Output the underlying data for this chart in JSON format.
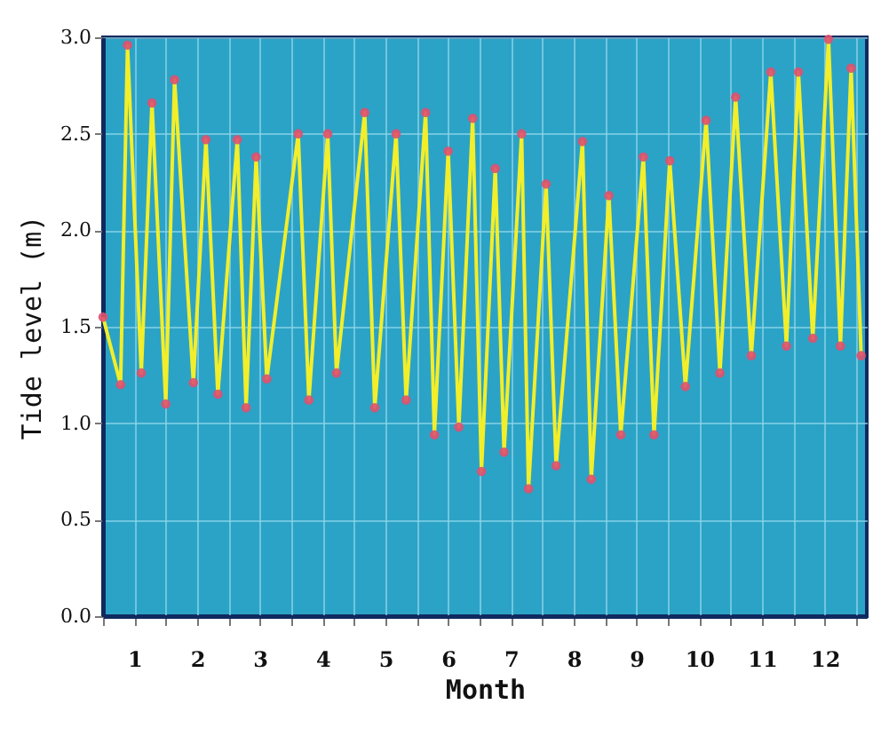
{
  "chart_data": {
    "type": "line",
    "xlabel": "Month",
    "ylabel": "Tide level (m)",
    "x": [
      0,
      0.28,
      0.39,
      0.61,
      0.78,
      1.0,
      1.14,
      1.44,
      1.64,
      1.83,
      2.14,
      2.28,
      2.44,
      2.61,
      3.11,
      3.28,
      3.58,
      3.72,
      4.17,
      4.33,
      4.67,
      4.83,
      5.14,
      5.28,
      5.5,
      5.67,
      5.89,
      6.03,
      6.25,
      6.39,
      6.67,
      6.78,
      7.06,
      7.22,
      7.64,
      7.78,
      8.06,
      8.25,
      8.61,
      8.78,
      9.03,
      9.28,
      9.61,
      9.83,
      10.08,
      10.33,
      10.64,
      10.89,
      11.08,
      11.31,
      11.56,
      11.75,
      11.92,
      12.08
    ],
    "series": [
      {
        "type": "line",
        "color": "#f2ee2a",
        "values": [
          1.55,
          1.2,
          2.96,
          1.26,
          2.66,
          1.1,
          2.78,
          1.21,
          2.47,
          1.15,
          2.47,
          1.08,
          2.38,
          1.23,
          2.5,
          1.12,
          2.5,
          1.26,
          2.61,
          1.08,
          2.5,
          1.12,
          2.61,
          0.94,
          2.41,
          0.98,
          2.58,
          0.75,
          2.32,
          0.85,
          2.5,
          0.66,
          2.24,
          0.78,
          2.46,
          0.71,
          2.18,
          0.94,
          2.38,
          0.94,
          2.36,
          1.19,
          2.57,
          1.26,
          2.69,
          1.35,
          2.82,
          1.4,
          2.82,
          1.44,
          2.99,
          1.4,
          2.84,
          1.35
        ]
      },
      {
        "type": "scatter",
        "color": "#e0506e",
        "values": [
          1.55,
          1.2,
          2.96,
          1.26,
          2.66,
          1.1,
          2.78,
          1.21,
          2.47,
          1.15,
          2.47,
          1.08,
          2.38,
          1.23,
          2.5,
          1.12,
          2.5,
          1.26,
          2.61,
          1.08,
          2.5,
          1.12,
          2.61,
          0.94,
          2.41,
          0.98,
          2.58,
          0.75,
          2.32,
          0.85,
          2.5,
          0.66,
          2.24,
          0.78,
          2.46,
          0.71,
          2.18,
          0.94,
          2.38,
          0.94,
          2.36,
          1.19,
          2.57,
          1.26,
          2.69,
          1.35,
          2.82,
          1.4,
          2.82,
          1.44,
          2.99,
          1.4,
          2.84,
          1.35
        ]
      }
    ],
    "xlim": [
      0,
      12.17
    ],
    "xticks": [
      {
        "value": 0,
        "label": null
      },
      {
        "value": 0.5,
        "label": "1"
      },
      {
        "value": 1,
        "label": null
      },
      {
        "value": 1.5,
        "label": "2"
      },
      {
        "value": 2,
        "label": null
      },
      {
        "value": 2.5,
        "label": "3"
      },
      {
        "value": 3,
        "label": null
      },
      {
        "value": 3.5,
        "label": "4"
      },
      {
        "value": 4,
        "label": null
      },
      {
        "value": 4.5,
        "label": "5"
      },
      {
        "value": 5,
        "label": null
      },
      {
        "value": 5.5,
        "label": "6"
      },
      {
        "value": 6,
        "label": null
      },
      {
        "value": 6.5,
        "label": "7"
      },
      {
        "value": 7,
        "label": null
      },
      {
        "value": 7.5,
        "label": "8"
      },
      {
        "value": 8,
        "label": null
      },
      {
        "value": 8.5,
        "label": "9"
      },
      {
        "value": 9,
        "label": null
      },
      {
        "value": 9.5,
        "label": "10"
      },
      {
        "value": 10,
        "label": null
      },
      {
        "value": 10.5,
        "label": "11"
      },
      {
        "value": 11,
        "label": null
      },
      {
        "value": 11.5,
        "label": "12"
      },
      {
        "value": 12,
        "label": null
      }
    ],
    "ylim": [
      0,
      3
    ],
    "yticks": [
      {
        "value": 0,
        "label": "0.0"
      },
      {
        "value": 0.5,
        "label": "0.5"
      },
      {
        "value": 1,
        "label": "1.0"
      },
      {
        "value": 1.5,
        "label": "1.5"
      },
      {
        "value": 2,
        "label": "2.0"
      },
      {
        "value": 2.5,
        "label": "2.5"
      },
      {
        "value": 3,
        "label": "3.0"
      }
    ],
    "grid": true
  }
}
